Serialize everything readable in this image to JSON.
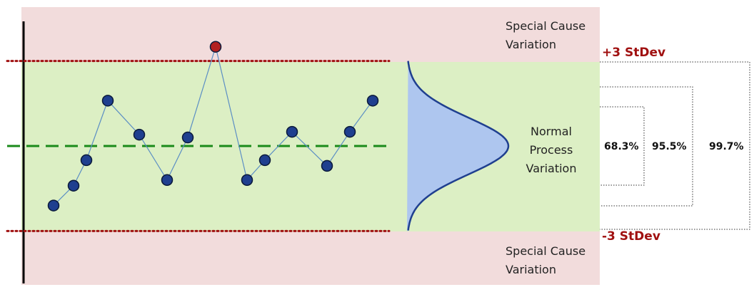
{
  "chart_data": {
    "type": "line",
    "x": [
      3.5,
      6.3,
      8.1,
      11.1,
      15.5,
      19.4,
      22.3,
      26.2,
      30.6,
      33.1,
      36.9,
      41.8,
      45,
      48.2
    ],
    "values": [
      -2.1,
      -1.4,
      -0.5,
      1.6,
      0.4,
      -1.2,
      0.3,
      3.5,
      -1.2,
      -0.5,
      0.5,
      -0.7,
      0.5,
      1.6
    ],
    "xlim": [
      0,
      54
    ],
    "ylim": [
      -4.9,
      4.9
    ],
    "color": "#1f3f8f",
    "line_color": "#5b8ec4",
    "highlight_color": "#b22020",
    "mean": 0,
    "mean_color": "#1a8a1a",
    "ucl": 3,
    "lcl": -3,
    "limit_color": "#a01010",
    "annotations": {
      "special_top": "Special Cause Variation",
      "special_bottom": "Special Cause Variation",
      "normal": "Normal Process Variation",
      "upper_limit": "+3 StDev",
      "lower_limit": "-3 StDev",
      "pct_1": "68.3%",
      "pct_2": "95.5%",
      "pct_3": "99.7%"
    }
  }
}
